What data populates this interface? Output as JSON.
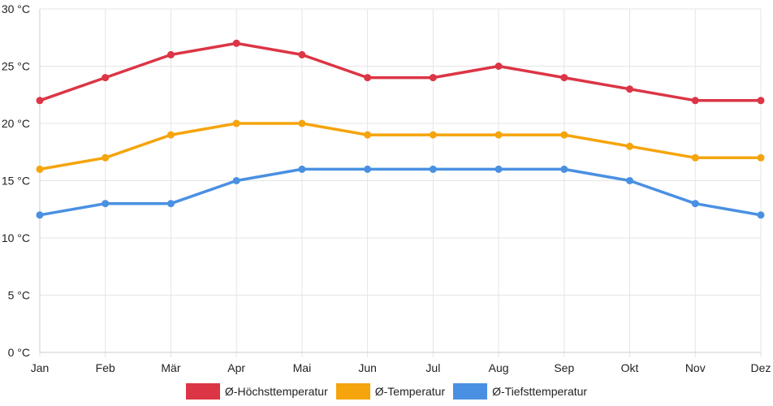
{
  "chart_data": {
    "type": "line",
    "categories": [
      "Jan",
      "Feb",
      "Mär",
      "Apr",
      "Mai",
      "Jun",
      "Jul",
      "Aug",
      "Sep",
      "Okt",
      "Nov",
      "Dez"
    ],
    "ylim": [
      0,
      30
    ],
    "yticks": [
      0,
      5,
      10,
      15,
      20,
      25,
      30
    ],
    "ytick_labels": [
      "0 °C",
      "5 °C",
      "10 °C",
      "15 °C",
      "20 °C",
      "25 °C",
      "30 °C"
    ],
    "grid": true,
    "legend_position": "bottom",
    "series": [
      {
        "name": "Ø-Höchsttemperatur",
        "color": "#dc3545",
        "values": [
          22,
          24,
          26,
          27,
          26,
          24,
          24,
          25,
          24,
          23,
          22,
          22
        ]
      },
      {
        "name": "Ø-Temperatur",
        "color": "#f5a40c",
        "values": [
          16,
          17,
          19,
          20,
          20,
          19,
          19,
          19,
          19,
          18,
          17,
          17
        ]
      },
      {
        "name": "Ø-Tiefsttemperatur",
        "color": "#4a90e2",
        "values": [
          12,
          13,
          13,
          15,
          16,
          16,
          16,
          16,
          16,
          15,
          13,
          12
        ]
      }
    ]
  }
}
